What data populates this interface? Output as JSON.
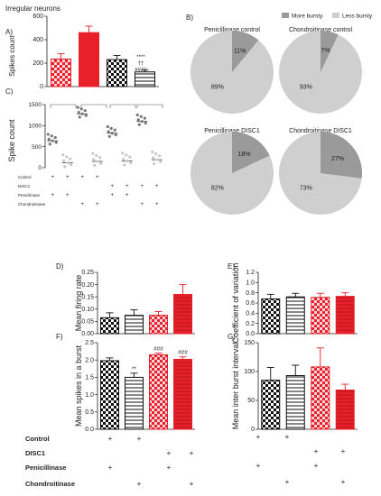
{
  "panel_labels": [
    "A)",
    "B)",
    "C)",
    "D)",
    "E)",
    "F)",
    "G)"
  ],
  "panel_a": {
    "title": "Irregular neurons",
    "ylabel": "Spikes count",
    "yticks": [
      "0",
      "200",
      "400",
      "600"
    ],
    "sig_labels": [
      "****",
      "††",
      "####"
    ]
  },
  "panel_c": {
    "ylabel": "Spike count",
    "yticks": [
      "0",
      "500",
      "1000",
      "1500"
    ]
  },
  "small_treatment_labels": [
    "Control",
    "DISC1",
    "Penicilinase",
    "Chondroitinase"
  ],
  "panel_b": {
    "legend": [
      "More bursty",
      "Less bursty"
    ],
    "pies": [
      {
        "title": "Penicillinase control",
        "more": 11,
        "less": 89,
        "more_label": "11%",
        "less_label": "89%"
      },
      {
        "title": "Chondroitinase control",
        "more": 7,
        "less": 93,
        "more_label": "7%",
        "less_label": "93%"
      },
      {
        "title": "Penicillinase DISC1",
        "more": 18,
        "less": 82,
        "more_label": "18%",
        "less_label": "82%"
      },
      {
        "title": "Chondroitinase DISC1",
        "more": 27,
        "less": 73,
        "more_label": "27%",
        "less_label": "73%"
      }
    ]
  },
  "panel_d": {
    "ylabel": "Mean firing rate",
    "yticks": [
      "0.00",
      "0.05",
      "0.10",
      "0.15",
      "0.20",
      "0.25"
    ]
  },
  "panel_e": {
    "ylabel": "Coefficient of variation",
    "yticks": [
      "0.0",
      "0.2",
      "0.4",
      "0.6",
      "0.8",
      "1.0",
      "1.2"
    ]
  },
  "panel_f": {
    "ylabel": "Mean spikes in a burst",
    "yticks": [
      "0.0",
      "0.5",
      "1.0",
      "1.5",
      "2.0",
      "2.5"
    ],
    "sig": [
      "**",
      "###",
      "###"
    ]
  },
  "panel_g": {
    "ylabel": "Mean inter burst interval",
    "yticks": [
      "0",
      "50",
      "100",
      "150"
    ]
  },
  "treatment_labels": [
    "Control",
    "DISC1",
    "Penicillinase",
    "Chondroitinase"
  ],
  "treatment_plus": [
    "+"
  ],
  "colors": {
    "red": "#e8202a",
    "pink": "#f6c8d0",
    "grey_dark": "#9a9a9a",
    "grey_light": "#cfcfcf",
    "black": "#111111"
  },
  "chart_data": [
    {
      "type": "bar",
      "panel": "A",
      "ylim": [
        0,
        600
      ],
      "series": [
        {
          "values": [
            235,
            460,
            230,
            125
          ]
        }
      ],
      "errors": [
        45,
        55,
        35,
        15
      ]
    },
    {
      "type": "scatter",
      "panel": "C",
      "ylim": [
        0,
        1500
      ],
      "series": [
        {
          "values": [
            640,
            120,
            1280,
            150,
            820,
            160,
            1100,
            190
          ]
        }
      ]
    },
    {
      "type": "pie",
      "panel": "B",
      "categories": [
        "More bursty",
        "Less bursty"
      ]
    },
    {
      "type": "bar",
      "panel": "D",
      "ylim": [
        0,
        0.25
      ],
      "series": [
        {
          "values": [
            0.065,
            0.075,
            0.075,
            0.16
          ]
        }
      ],
      "errors": [
        0.02,
        0.022,
        0.015,
        0.04
      ]
    },
    {
      "type": "bar",
      "panel": "E",
      "ylim": [
        0,
        1.2
      ],
      "series": [
        {
          "values": [
            0.68,
            0.72,
            0.71,
            0.73
          ]
        }
      ],
      "errors": [
        0.09,
        0.07,
        0.08,
        0.07
      ]
    },
    {
      "type": "bar",
      "panel": "F",
      "ylim": [
        0,
        2.5
      ],
      "series": [
        {
          "values": [
            1.98,
            1.5,
            2.15,
            2.02
          ]
        }
      ],
      "errors": [
        0.08,
        0.12,
        0.05,
        0.07
      ]
    },
    {
      "type": "bar",
      "panel": "G",
      "ylim": [
        0,
        150
      ],
      "series": [
        {
          "values": [
            85,
            93,
            108,
            68
          ]
        }
      ],
      "errors": [
        22,
        18,
        33,
        10
      ]
    }
  ]
}
